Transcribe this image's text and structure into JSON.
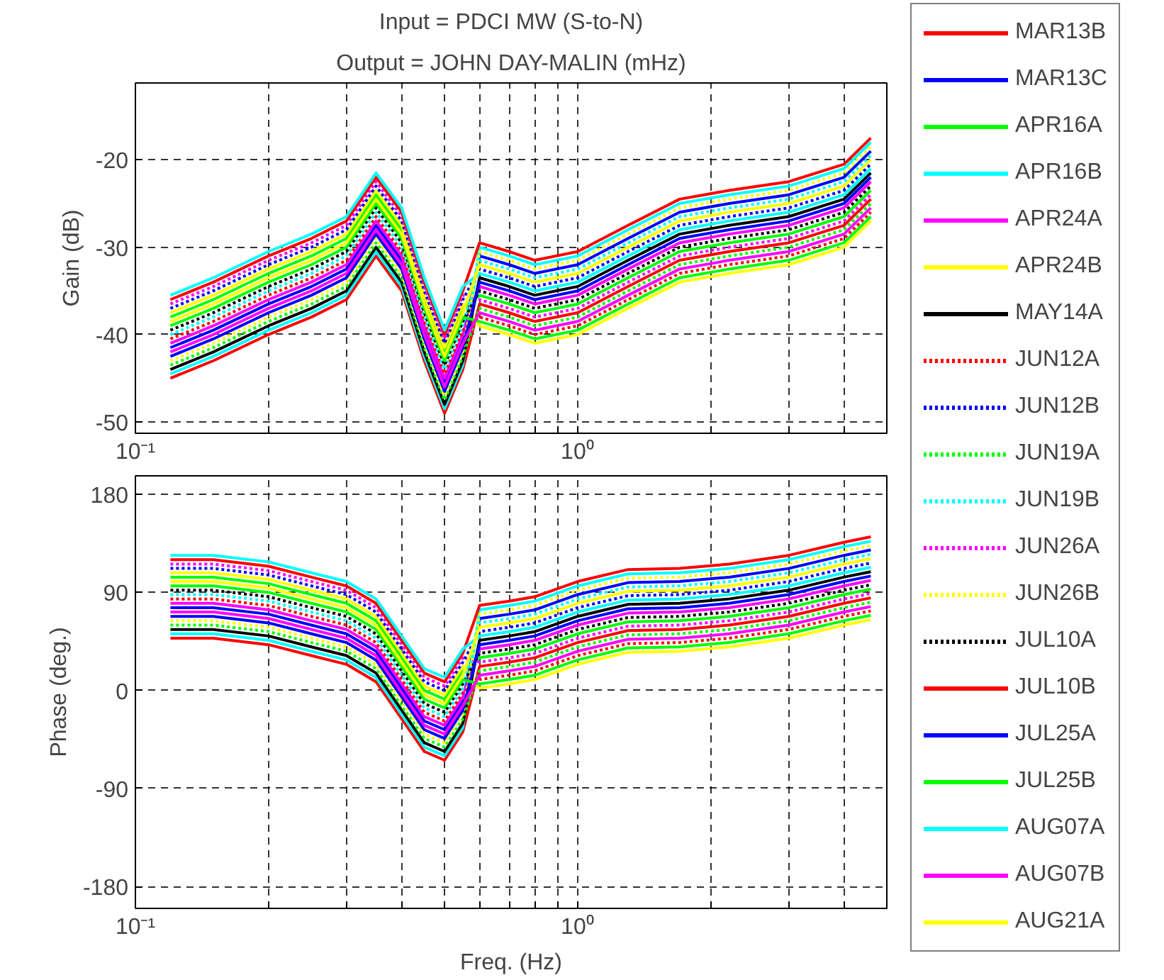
{
  "chart_data": [
    {
      "type": "line",
      "title": "Input = PDCI MW (S-to-N)",
      "subtitle": "Output = JOHN DAY-MALIN (mHz)",
      "ylabel": "Gain (dB)",
      "log": "x",
      "grid": true,
      "legend": "right",
      "xlim": [
        0.1,
        5
      ],
      "ylim": [
        -51.3,
        -11.2
      ],
      "xticks": [
        {
          "value": 0.1,
          "label": "10⁻¹"
        },
        {
          "value": 0.2,
          "label": null
        },
        {
          "value": 0.3,
          "label": null
        },
        {
          "value": 0.4,
          "label": null
        },
        {
          "value": 0.5,
          "label": null
        },
        {
          "value": 0.6,
          "label": null
        },
        {
          "value": 0.7,
          "label": null
        },
        {
          "value": 0.8,
          "label": null
        },
        {
          "value": 0.9,
          "label": null
        },
        {
          "value": 1,
          "label": "10⁰"
        },
        {
          "value": 2,
          "label": null
        },
        {
          "value": 3,
          "label": null
        },
        {
          "value": 4,
          "label": null
        }
      ],
      "yticks": [
        -50,
        -40,
        -30,
        -20
      ],
      "x": [
        0.12,
        0.15,
        0.2,
        0.25,
        0.3,
        0.35,
        0.4,
        0.45,
        0.5,
        0.55,
        0.6,
        0.7,
        0.8,
        1.0,
        1.3,
        1.7,
        2.2,
        3,
        4,
        4.6
      ],
      "series": [
        {
          "name": "MAR13B",
          "color": "#ff0000",
          "line_style": "solid",
          "values": [
            -45,
            -43,
            -40,
            -38,
            -36,
            -31,
            -35,
            -43,
            -49,
            -44,
            -36.5,
            -37.5,
            -38.5,
            -37.5,
            -34.5,
            -31.5,
            -30.5,
            -29.5,
            -27.5,
            -24.5
          ]
        },
        {
          "name": "MAR13C",
          "color": "#0000ff",
          "line_style": "solid",
          "values": [
            -41.5,
            -39.5,
            -36.5,
            -34.5,
            -32.5,
            -27.5,
            -31.5,
            -39.5,
            -45.5,
            -40.5,
            -31,
            -32,
            -33,
            -32,
            -29,
            -26,
            -25,
            -24,
            -22,
            -19
          ]
        },
        {
          "name": "APR16A",
          "color": "#00ff00",
          "line_style": "solid",
          "values": [
            -38,
            -36,
            -33,
            -31,
            -29,
            -24,
            -28,
            -36,
            -42,
            -37,
            -35.5,
            -36.5,
            -37.5,
            -36.5,
            -33.5,
            -30.5,
            -29.5,
            -28.5,
            -26.5,
            -23.5
          ]
        },
        {
          "name": "APR16B",
          "color": "#00ffff",
          "line_style": "solid",
          "values": [
            -44.5,
            -42.5,
            -39.5,
            -37.5,
            -35.5,
            -30.5,
            -34.5,
            -42.5,
            -48.5,
            -43.5,
            -30,
            -31,
            -32,
            -31,
            -28,
            -25,
            -24,
            -23,
            -21,
            -18
          ]
        },
        {
          "name": "APR24A",
          "color": "#ff00ff",
          "line_style": "solid",
          "values": [
            -41,
            -39,
            -36,
            -34,
            -32,
            -27,
            -31,
            -39,
            -45,
            -40,
            -34.5,
            -35.5,
            -36.5,
            -35.5,
            -32.5,
            -29.5,
            -28.5,
            -27.5,
            -25.5,
            -22.5
          ]
        },
        {
          "name": "APR24B",
          "color": "#ffff00",
          "line_style": "solid",
          "values": [
            -37.5,
            -35.5,
            -32.5,
            -30.5,
            -28.5,
            -23.5,
            -27.5,
            -35.5,
            -41.5,
            -36.5,
            -39,
            -40,
            -41,
            -40,
            -37,
            -34,
            -33,
            -32,
            -30,
            -27
          ]
        },
        {
          "name": "MAY14A",
          "color": "#000000",
          "line_style": "solid",
          "values": [
            -44,
            -42,
            -39,
            -37,
            -35,
            -30,
            -34,
            -42,
            -48,
            -43,
            -33.5,
            -34.5,
            -35.5,
            -34.5,
            -31.5,
            -28.5,
            -27.5,
            -26.5,
            -24.5,
            -21.5
          ]
        },
        {
          "name": "JUN12A",
          "color": "#ff0000",
          "line_style": "dotted",
          "values": [
            -40.5,
            -38.5,
            -35.5,
            -33.5,
            -31.5,
            -26.5,
            -30.5,
            -38.5,
            -44.5,
            -39.5,
            -38,
            -39,
            -40,
            -39,
            -36,
            -33,
            -32,
            -31,
            -29,
            -26
          ]
        },
        {
          "name": "JUN12B",
          "color": "#0000ff",
          "line_style": "dotted",
          "values": [
            -37,
            -35,
            -32,
            -30,
            -28,
            -23,
            -27,
            -35,
            -41,
            -36,
            -32.5,
            -33.5,
            -34.5,
            -33.5,
            -30.5,
            -27.5,
            -26.5,
            -25.5,
            -23.5,
            -20.5
          ]
        },
        {
          "name": "JUN19A",
          "color": "#00ff00",
          "line_style": "dotted",
          "values": [
            -43.5,
            -41.5,
            -38.5,
            -36.5,
            -34.5,
            -29.5,
            -33.5,
            -41.5,
            -47.5,
            -42.5,
            -37,
            -38,
            -39,
            -38,
            -35,
            -32,
            -31,
            -30,
            -28,
            -25
          ]
        },
        {
          "name": "JUN19B",
          "color": "#00ffff",
          "line_style": "dotted",
          "values": [
            -40,
            -38,
            -35,
            -33,
            -31,
            -26,
            -30,
            -38,
            -44,
            -39,
            -31.5,
            -32.5,
            -33.5,
            -32.5,
            -29.5,
            -26.5,
            -25.5,
            -24.5,
            -22.5,
            -19.5
          ]
        },
        {
          "name": "JUN26A",
          "color": "#ff00ff",
          "line_style": "dotted",
          "values": [
            -36.5,
            -34.5,
            -31.5,
            -29.5,
            -27.5,
            -22.5,
            -26.5,
            -34.5,
            -40.5,
            -35.5,
            -36,
            -37,
            -38,
            -37,
            -34,
            -31,
            -30,
            -29,
            -27,
            -24
          ]
        },
        {
          "name": "JUN26B",
          "color": "#ffff00",
          "line_style": "dotted",
          "values": [
            -43,
            -41,
            -38,
            -36,
            -34,
            -29,
            -33,
            -41,
            -47,
            -42,
            -30.5,
            -31.5,
            -32.5,
            -31.5,
            -28.5,
            -25.5,
            -24.5,
            -23.5,
            -21.5,
            -18.5
          ]
        },
        {
          "name": "JUL10A",
          "color": "#000000",
          "line_style": "dotted",
          "values": [
            -39.5,
            -37.5,
            -34.5,
            -32.5,
            -30.5,
            -25.5,
            -29.5,
            -37.5,
            -43.5,
            -38.5,
            -35,
            -36,
            -37,
            -36,
            -33,
            -30,
            -29,
            -28,
            -26,
            -23
          ]
        },
        {
          "name": "JUL10B",
          "color": "#ff0000",
          "line_style": "solid",
          "values": [
            -36,
            -34,
            -31,
            -29,
            -27,
            -22,
            -26,
            -34,
            -40,
            -35,
            -29.5,
            -30.5,
            -31.5,
            -30.5,
            -27.5,
            -24.5,
            -23.5,
            -22.5,
            -20.5,
            -17.5
          ]
        },
        {
          "name": "JUL25A",
          "color": "#0000ff",
          "line_style": "solid",
          "values": [
            -42.5,
            -40.5,
            -37.5,
            -35.5,
            -33.5,
            -28.5,
            -32.5,
            -40.5,
            -46.5,
            -41.5,
            -34,
            -35,
            -36,
            -35,
            -32,
            -29,
            -28,
            -27,
            -25,
            -22
          ]
        },
        {
          "name": "JUL25B",
          "color": "#00ff00",
          "line_style": "solid",
          "values": [
            -39,
            -37,
            -34,
            -32,
            -30,
            -25,
            -29,
            -37,
            -43,
            -38,
            -38.5,
            -39.5,
            -40.5,
            -39.5,
            -36.5,
            -33.5,
            -32.5,
            -31.5,
            -29.5,
            -26.5
          ]
        },
        {
          "name": "AUG07A",
          "color": "#00ffff",
          "line_style": "solid",
          "values": [
            -35.5,
            -33.5,
            -30.5,
            -28.5,
            -26.5,
            -21.5,
            -25.5,
            -33.5,
            -39.5,
            -34.5,
            -33,
            -34,
            -35,
            -34,
            -31,
            -28,
            -27,
            -26,
            -24,
            -21
          ]
        },
        {
          "name": "AUG07B",
          "color": "#ff00ff",
          "line_style": "solid",
          "values": [
            -42,
            -40,
            -37,
            -35,
            -33,
            -28,
            -32,
            -40,
            -46,
            -41,
            -37.5,
            -38.5,
            -39.5,
            -38.5,
            -35.5,
            -32.5,
            -31.5,
            -30.5,
            -28.5,
            -25.5
          ]
        },
        {
          "name": "AUG21A",
          "color": "#ffff00",
          "line_style": "solid",
          "values": [
            -38.5,
            -36.5,
            -33.5,
            -31.5,
            -29.5,
            -24.5,
            -28.5,
            -36.5,
            -42.5,
            -37.5,
            -32,
            -33,
            -34,
            -33,
            -30,
            -27,
            -26,
            -25,
            -23,
            -20
          ]
        }
      ]
    },
    {
      "type": "line",
      "xlabel": "Freq. (Hz)",
      "ylabel": "Phase (deg.)",
      "log": "x",
      "grid": true,
      "xlim": [
        0.1,
        5
      ],
      "ylim": [
        -200,
        197
      ],
      "xticks": [
        {
          "value": 0.1,
          "label": "10⁻¹"
        },
        {
          "value": 0.2,
          "label": null
        },
        {
          "value": 0.3,
          "label": null
        },
        {
          "value": 0.4,
          "label": null
        },
        {
          "value": 0.5,
          "label": null
        },
        {
          "value": 0.6,
          "label": null
        },
        {
          "value": 0.7,
          "label": null
        },
        {
          "value": 0.8,
          "label": null
        },
        {
          "value": 0.9,
          "label": null
        },
        {
          "value": 1,
          "label": "10⁰"
        },
        {
          "value": 2,
          "label": null
        },
        {
          "value": 3,
          "label": null
        },
        {
          "value": 4,
          "label": null
        }
      ],
      "yticks": [
        -180,
        -90,
        0,
        90,
        180
      ],
      "x": [
        0.12,
        0.15,
        0.2,
        0.25,
        0.3,
        0.35,
        0.4,
        0.45,
        0.5,
        0.55,
        0.6,
        0.7,
        0.8,
        1.0,
        1.3,
        1.7,
        2.2,
        3,
        4,
        4.6
      ],
      "series": [
        {
          "color": "#ff0000",
          "line_style": "solid",
          "values": [
            48,
            48,
            42,
            32,
            24,
            8,
            -26,
            -56,
            -64,
            -38,
            22,
            26,
            30,
            44,
            55,
            56,
            60,
            68,
            80,
            85
          ]
        },
        {
          "color": "#0000ff",
          "line_style": "solid",
          "values": [
            76,
            76,
            70,
            60,
            52,
            36,
            2,
            -28,
            -36,
            -10,
            66,
            70,
            74,
            88,
            99,
            100,
            104,
            112,
            124,
            129
          ]
        },
        {
          "color": "#00ff00",
          "line_style": "solid",
          "values": [
            104,
            104,
            98,
            88,
            80,
            64,
            30,
            0,
            -8,
            18,
            30,
            34,
            38,
            52,
            63,
            64,
            68,
            76,
            88,
            93
          ]
        },
        {
          "color": "#00ffff",
          "line_style": "solid",
          "values": [
            52,
            52,
            46,
            36,
            28,
            12,
            -22,
            -52,
            -60,
            -34,
            74,
            78,
            82,
            96,
            107,
            108,
            112,
            120,
            132,
            137
          ]
        },
        {
          "color": "#ff00ff",
          "line_style": "solid",
          "values": [
            80,
            80,
            74,
            64,
            56,
            40,
            6,
            -24,
            -32,
            -6,
            38,
            42,
            46,
            60,
            71,
            72,
            76,
            84,
            96,
            101
          ]
        },
        {
          "color": "#ffff00",
          "line_style": "solid",
          "values": [
            108,
            108,
            102,
            92,
            84,
            68,
            34,
            4,
            -4,
            22,
            2,
            6,
            10,
            24,
            35,
            36,
            40,
            48,
            60,
            65
          ]
        },
        {
          "color": "#000000",
          "line_style": "solid",
          "values": [
            56,
            56,
            50,
            40,
            32,
            16,
            -18,
            -48,
            -56,
            -30,
            46,
            50,
            54,
            68,
            79,
            80,
            84,
            92,
            104,
            109
          ]
        },
        {
          "color": "#ff0000",
          "line_style": "dotted",
          "values": [
            84,
            84,
            78,
            68,
            60,
            44,
            10,
            -20,
            -28,
            -2,
            10,
            14,
            18,
            32,
            43,
            44,
            48,
            56,
            68,
            73
          ]
        },
        {
          "color": "#0000ff",
          "line_style": "dotted",
          "values": [
            112,
            112,
            106,
            96,
            88,
            72,
            38,
            8,
            0,
            26,
            54,
            58,
            62,
            76,
            87,
            88,
            92,
            100,
            112,
            117
          ]
        },
        {
          "color": "#00ff00",
          "line_style": "dotted",
          "values": [
            60,
            60,
            54,
            44,
            36,
            20,
            -14,
            -44,
            -52,
            -26,
            18,
            22,
            26,
            40,
            51,
            52,
            56,
            64,
            76,
            81
          ]
        },
        {
          "color": "#00ffff",
          "line_style": "dotted",
          "values": [
            88,
            88,
            82,
            72,
            64,
            48,
            14,
            -16,
            -24,
            2,
            62,
            66,
            70,
            84,
            95,
            96,
            100,
            108,
            120,
            125
          ]
        },
        {
          "color": "#ff00ff",
          "line_style": "dotted",
          "values": [
            116,
            116,
            110,
            100,
            92,
            76,
            42,
            12,
            4,
            30,
            26,
            30,
            34,
            48,
            59,
            60,
            64,
            72,
            84,
            89
          ]
        },
        {
          "color": "#ffff00",
          "line_style": "dotted",
          "values": [
            64,
            64,
            58,
            48,
            40,
            24,
            -10,
            -40,
            -48,
            -22,
            70,
            74,
            78,
            92,
            103,
            104,
            108,
            116,
            128,
            133
          ]
        },
        {
          "color": "#000000",
          "line_style": "dotted",
          "values": [
            92,
            92,
            86,
            76,
            68,
            52,
            18,
            -12,
            -20,
            6,
            34,
            38,
            42,
            56,
            67,
            68,
            72,
            80,
            92,
            97
          ]
        },
        {
          "color": "#ff0000",
          "line_style": "solid",
          "values": [
            120,
            120,
            114,
            104,
            96,
            80,
            46,
            16,
            8,
            34,
            78,
            82,
            86,
            100,
            111,
            112,
            116,
            124,
            136,
            141
          ]
        },
        {
          "color": "#0000ff",
          "line_style": "solid",
          "values": [
            68,
            68,
            62,
            52,
            44,
            28,
            -6,
            -36,
            -44,
            -18,
            42,
            46,
            50,
            64,
            75,
            76,
            80,
            88,
            100,
            105
          ]
        },
        {
          "color": "#00ff00",
          "line_style": "solid",
          "values": [
            96,
            96,
            90,
            80,
            72,
            56,
            22,
            -8,
            -16,
            10,
            6,
            10,
            14,
            28,
            39,
            40,
            44,
            52,
            64,
            69
          ]
        },
        {
          "color": "#00ffff",
          "line_style": "solid",
          "values": [
            124,
            124,
            118,
            108,
            100,
            84,
            50,
            20,
            12,
            38,
            50,
            54,
            58,
            72,
            83,
            84,
            88,
            96,
            108,
            113
          ]
        },
        {
          "color": "#ff00ff",
          "line_style": "solid",
          "values": [
            72,
            72,
            66,
            56,
            48,
            32,
            -2,
            -32,
            -40,
            -14,
            14,
            18,
            22,
            36,
            47,
            48,
            52,
            60,
            72,
            77
          ]
        },
        {
          "color": "#ffff00",
          "line_style": "solid",
          "values": [
            100,
            100,
            94,
            84,
            76,
            60,
            26,
            -4,
            -12,
            14,
            58,
            62,
            66,
            80,
            91,
            92,
            96,
            104,
            116,
            121
          ]
        }
      ]
    }
  ]
}
